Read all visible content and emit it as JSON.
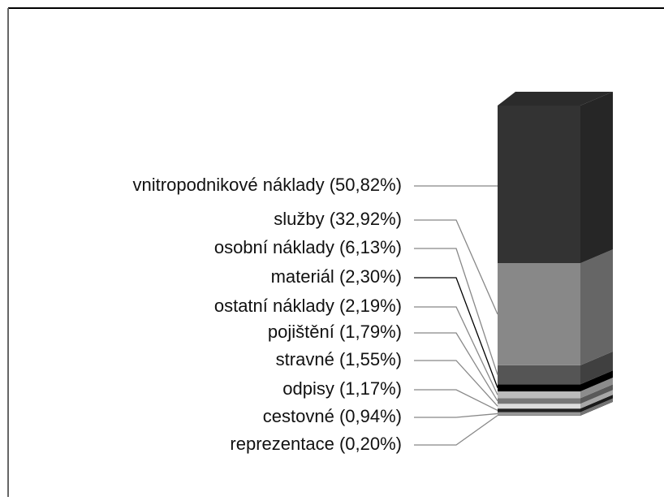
{
  "chart_data": {
    "type": "stacked_bar_3d",
    "series": [
      {
        "name": "vnitropodnikové náklady",
        "color": "#333333",
        "values": [
          50.82
        ],
        "value_labels": [
          "(50,82%)"
        ]
      },
      {
        "name": "služby",
        "color": "#888888",
        "values": [
          32.92
        ],
        "value_labels": [
          "(32,92%)"
        ]
      },
      {
        "name": "osobní náklady",
        "color": "#555555",
        "values": [
          6.13
        ],
        "value_labels": [
          "(6,13%)"
        ]
      },
      {
        "name": "materiál",
        "color": "#000000",
        "values": [
          2.3
        ],
        "value_labels": [
          "(2,30%)"
        ]
      },
      {
        "name": "ostatní náklady",
        "color": "#bbbbbb",
        "values": [
          2.19
        ],
        "value_labels": [
          "(2,19%)"
        ]
      },
      {
        "name": "pojištění",
        "color": "#777777",
        "values": [
          1.79
        ],
        "value_labels": [
          "(1,79%)"
        ]
      },
      {
        "name": "stravné",
        "color": "#dddddd",
        "values": [
          1.55
        ],
        "value_labels": [
          "(1,55%)"
        ]
      },
      {
        "name": "odpisy",
        "color": "#222222",
        "values": [
          1.17
        ],
        "value_labels": [
          "(1,17%)"
        ]
      },
      {
        "name": "cestovné",
        "color": "#999999",
        "values": [
          0.94
        ],
        "value_labels": [
          "(0,94%)"
        ]
      },
      {
        "name": "reprezentace",
        "color": "#666666",
        "values": [
          0.2
        ],
        "value_labels": [
          "(0,20%)"
        ]
      }
    ]
  }
}
